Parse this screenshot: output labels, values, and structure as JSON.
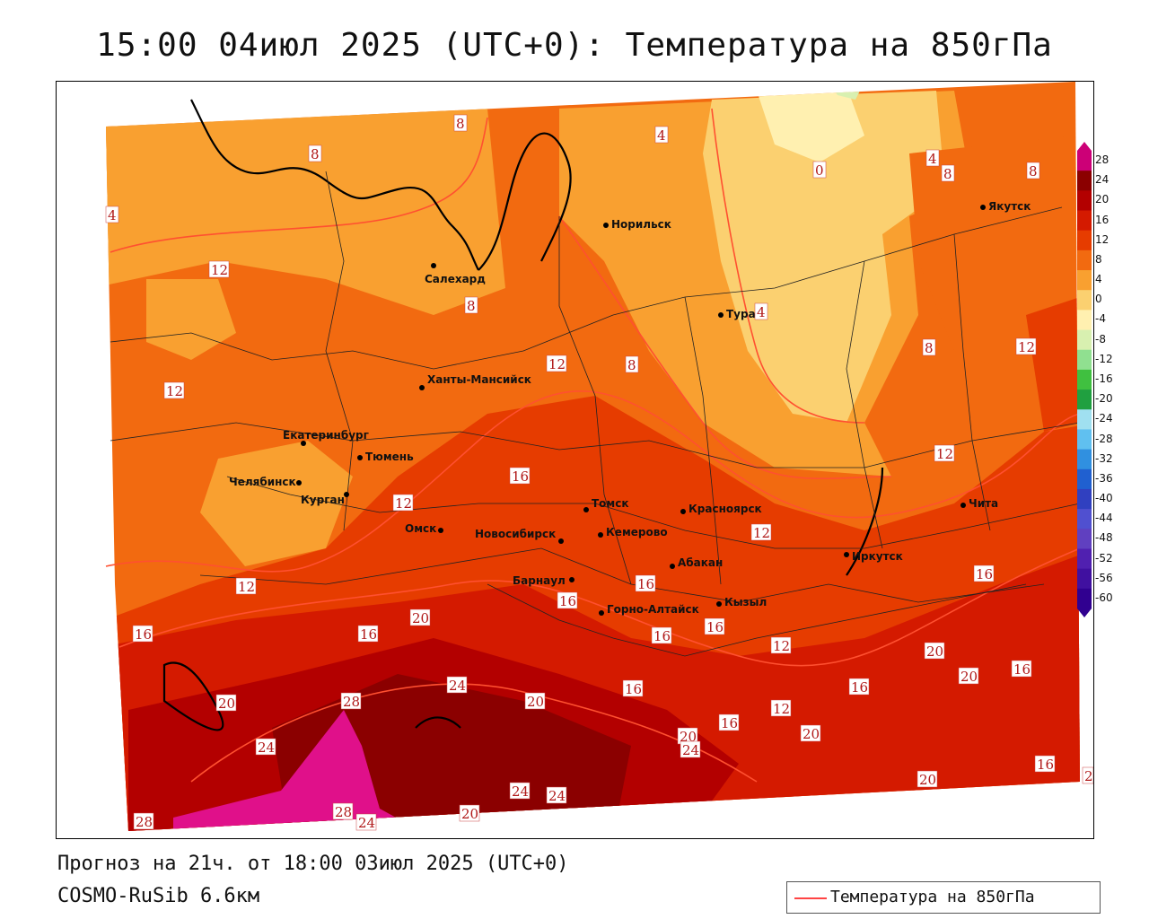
{
  "title": "15:00 04июл 2025 (UTC+0): Температура на 850гПа",
  "forecast_line": "Прогноз на 21ч. от 18:00 03июл 2025 (UTC+0)",
  "model_line": "COSMO-RuSib 6.6км",
  "legend": {
    "label": "Температура на 850гПа",
    "line_color": "#ff4444"
  },
  "colorbar": {
    "ticks": [
      "28",
      "24",
      "20",
      "16",
      "12",
      "8",
      "4",
      "0",
      "-4",
      "-8",
      "-12",
      "-16",
      "-20",
      "-24",
      "-28",
      "-32",
      "-36",
      "-40",
      "-44",
      "-48",
      "-52",
      "-56",
      "-60"
    ],
    "colors": [
      "#cc0077",
      "#8b0000",
      "#b30000",
      "#d41a00",
      "#e63c00",
      "#f26a10",
      "#f9a030",
      "#fbd070",
      "#fff0b0",
      "#d8f0b0",
      "#90e090",
      "#40c040",
      "#20a040",
      "#a0e0f0",
      "#60c0f0",
      "#3090e0",
      "#2060d0",
      "#3040c0",
      "#5050d0",
      "#6040c0",
      "#5020b0",
      "#4010a0",
      "#300090"
    ]
  },
  "cities": [
    {
      "name": "Норильск"
    },
    {
      "name": "Якутск"
    },
    {
      "name": "Салехард"
    },
    {
      "name": "Тура"
    },
    {
      "name": "Ханты-Мансийск"
    },
    {
      "name": "Екатеринбург"
    },
    {
      "name": "Тюмень"
    },
    {
      "name": "Челябинск"
    },
    {
      "name": "Курган"
    },
    {
      "name": "Омск"
    },
    {
      "name": "Новосибирск"
    },
    {
      "name": "Томск"
    },
    {
      "name": "Кемерово"
    },
    {
      "name": "Красноярск"
    },
    {
      "name": "Абакан"
    },
    {
      "name": "Барнаул"
    },
    {
      "name": "Горно-Алтайск"
    },
    {
      "name": "Кызыл"
    },
    {
      "name": "Иркутск"
    },
    {
      "name": "Чита"
    }
  ],
  "isolines": [
    "8",
    "8",
    "4",
    "0",
    "4",
    "8",
    "8",
    "4",
    "12",
    "8",
    "4",
    "8",
    "12",
    "12",
    "12",
    "8",
    "12",
    "16",
    "12",
    "12",
    "12",
    "16",
    "16",
    "16",
    "16",
    "16",
    "20",
    "16",
    "16",
    "16",
    "12",
    "20",
    "20",
    "16",
    "24",
    "20",
    "28",
    "20",
    "24",
    "16",
    "12",
    "20",
    "20",
    "16",
    "24",
    "20",
    "24",
    "24",
    "28",
    "24",
    "20",
    "28",
    "16",
    "2"
  ]
}
